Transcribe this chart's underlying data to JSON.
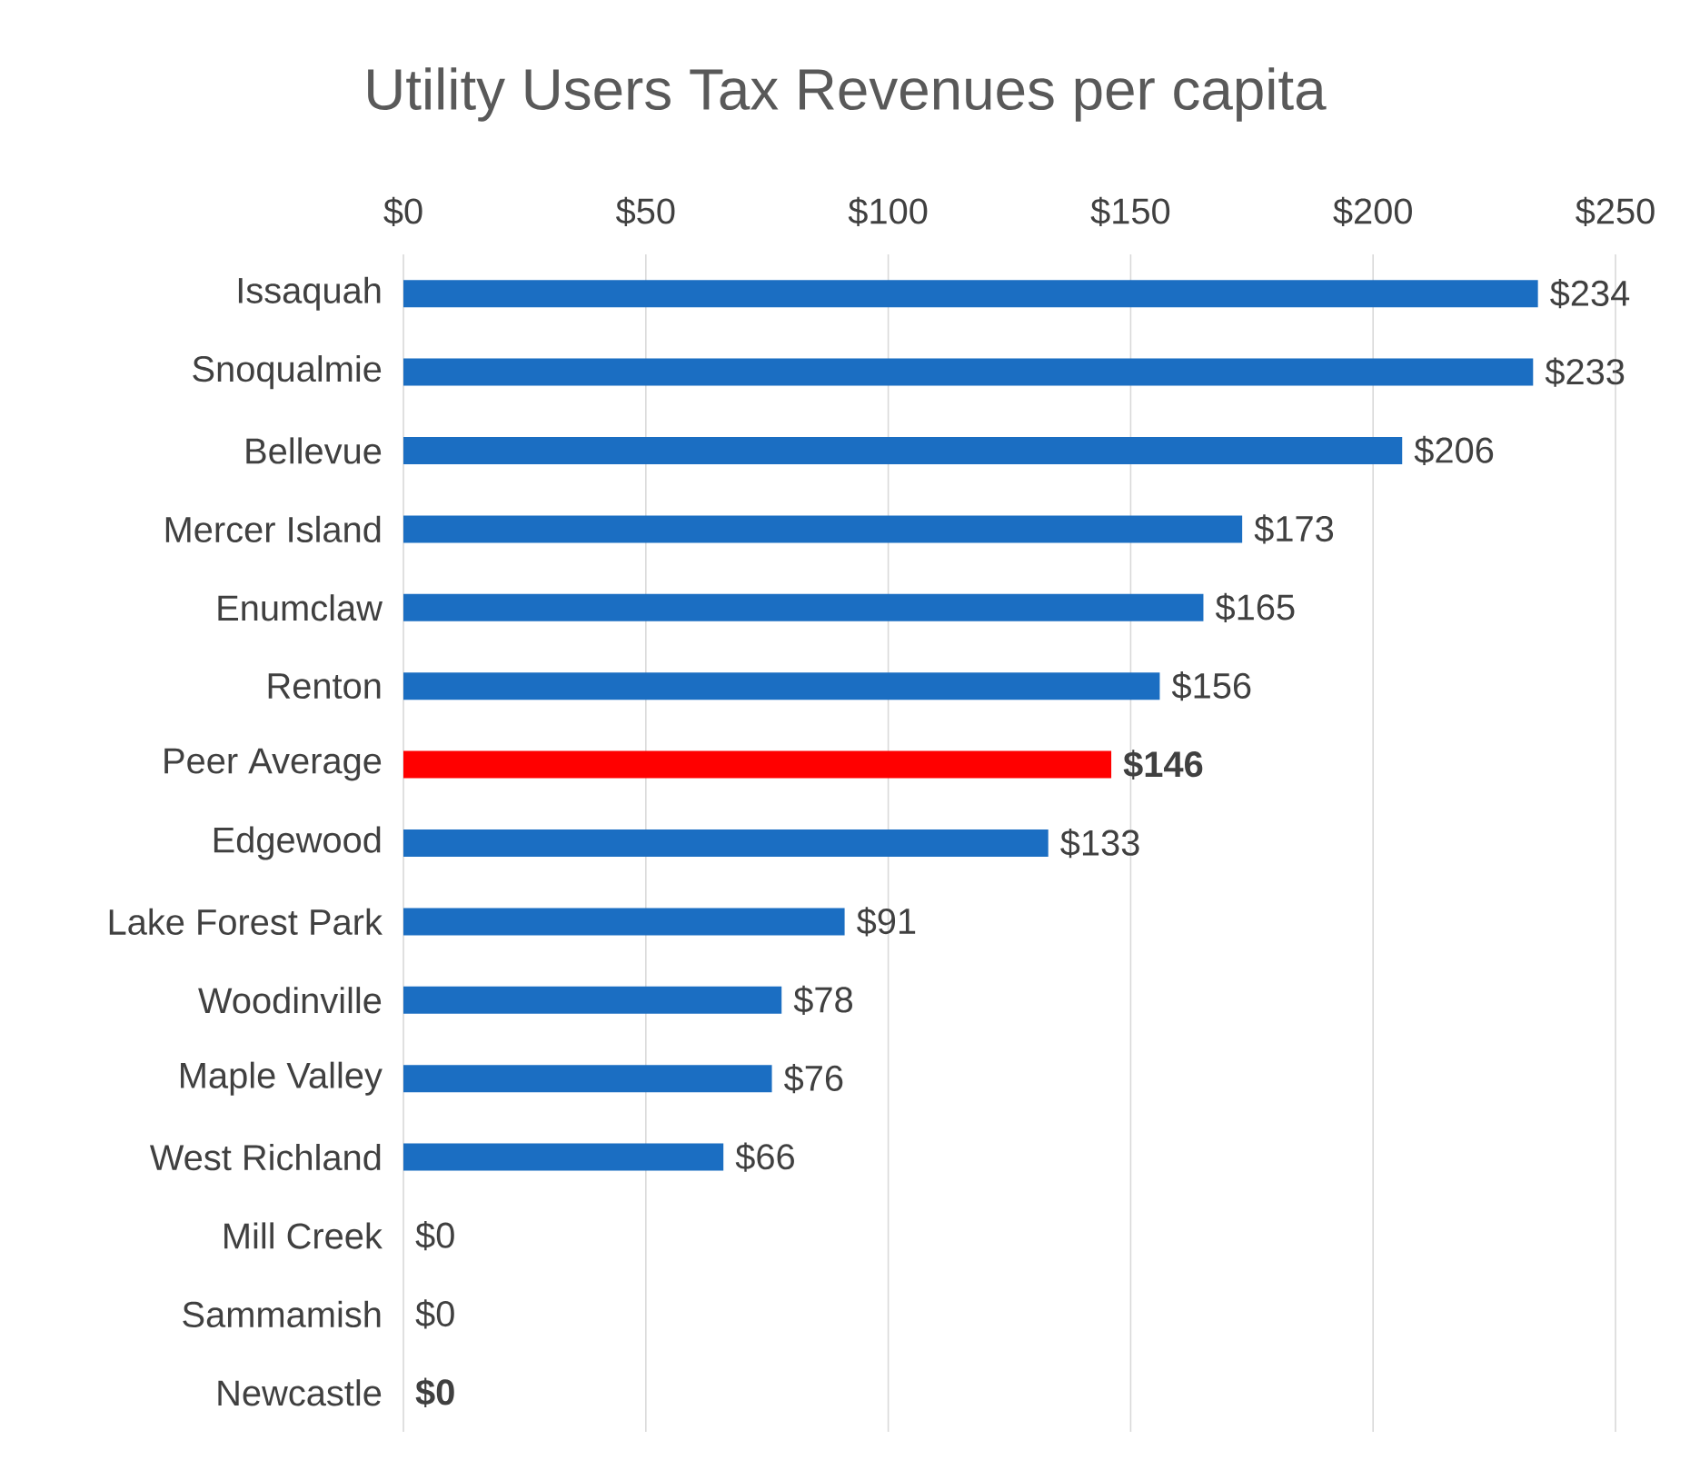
{
  "chart_data": {
    "type": "bar",
    "orientation": "horizontal",
    "title": "Utility Users Tax Revenues per capita",
    "categories": [
      "Issaquah",
      "Snoqualmie",
      "Bellevue",
      "Mercer Island",
      "Enumclaw",
      "Renton",
      "Peer Average",
      "Edgewood",
      "Lake Forest Park",
      "Woodinville",
      "Maple Valley",
      "West Richland",
      "Mill Creek",
      "Sammamish",
      "Newcastle"
    ],
    "values": [
      234,
      233,
      206,
      173,
      165,
      156,
      146,
      133,
      91,
      78,
      76,
      66,
      0,
      0,
      0
    ],
    "colors": [
      "#1b6ec2",
      "#1b6ec2",
      "#1b6ec2",
      "#1b6ec2",
      "#1b6ec2",
      "#1b6ec2",
      "#ff0000",
      "#1b6ec2",
      "#1b6ec2",
      "#1b6ec2",
      "#1b6ec2",
      "#1b6ec2",
      "#1b6ec2",
      "#1b6ec2",
      "#1b6ec2"
    ],
    "value_labels": [
      "$234",
      "$233",
      "$206",
      "$173",
      "$165",
      "$156",
      "**$146**",
      "$133",
      "$91",
      "$78",
      "$76",
      "$66",
      "$0",
      "$0",
      "**$0**"
    ],
    "xlim": [
      0,
      250
    ],
    "xticks": [
      {
        "value": 0,
        "label": "$0"
      },
      {
        "value": 50,
        "label": "$50"
      },
      {
        "value": 100,
        "label": "$100"
      },
      {
        "value": 150,
        "label": "$150"
      },
      {
        "value": 200,
        "label": "$200"
      },
      {
        "value": 250,
        "label": "$250"
      }
    ],
    "grid": "x"
  }
}
